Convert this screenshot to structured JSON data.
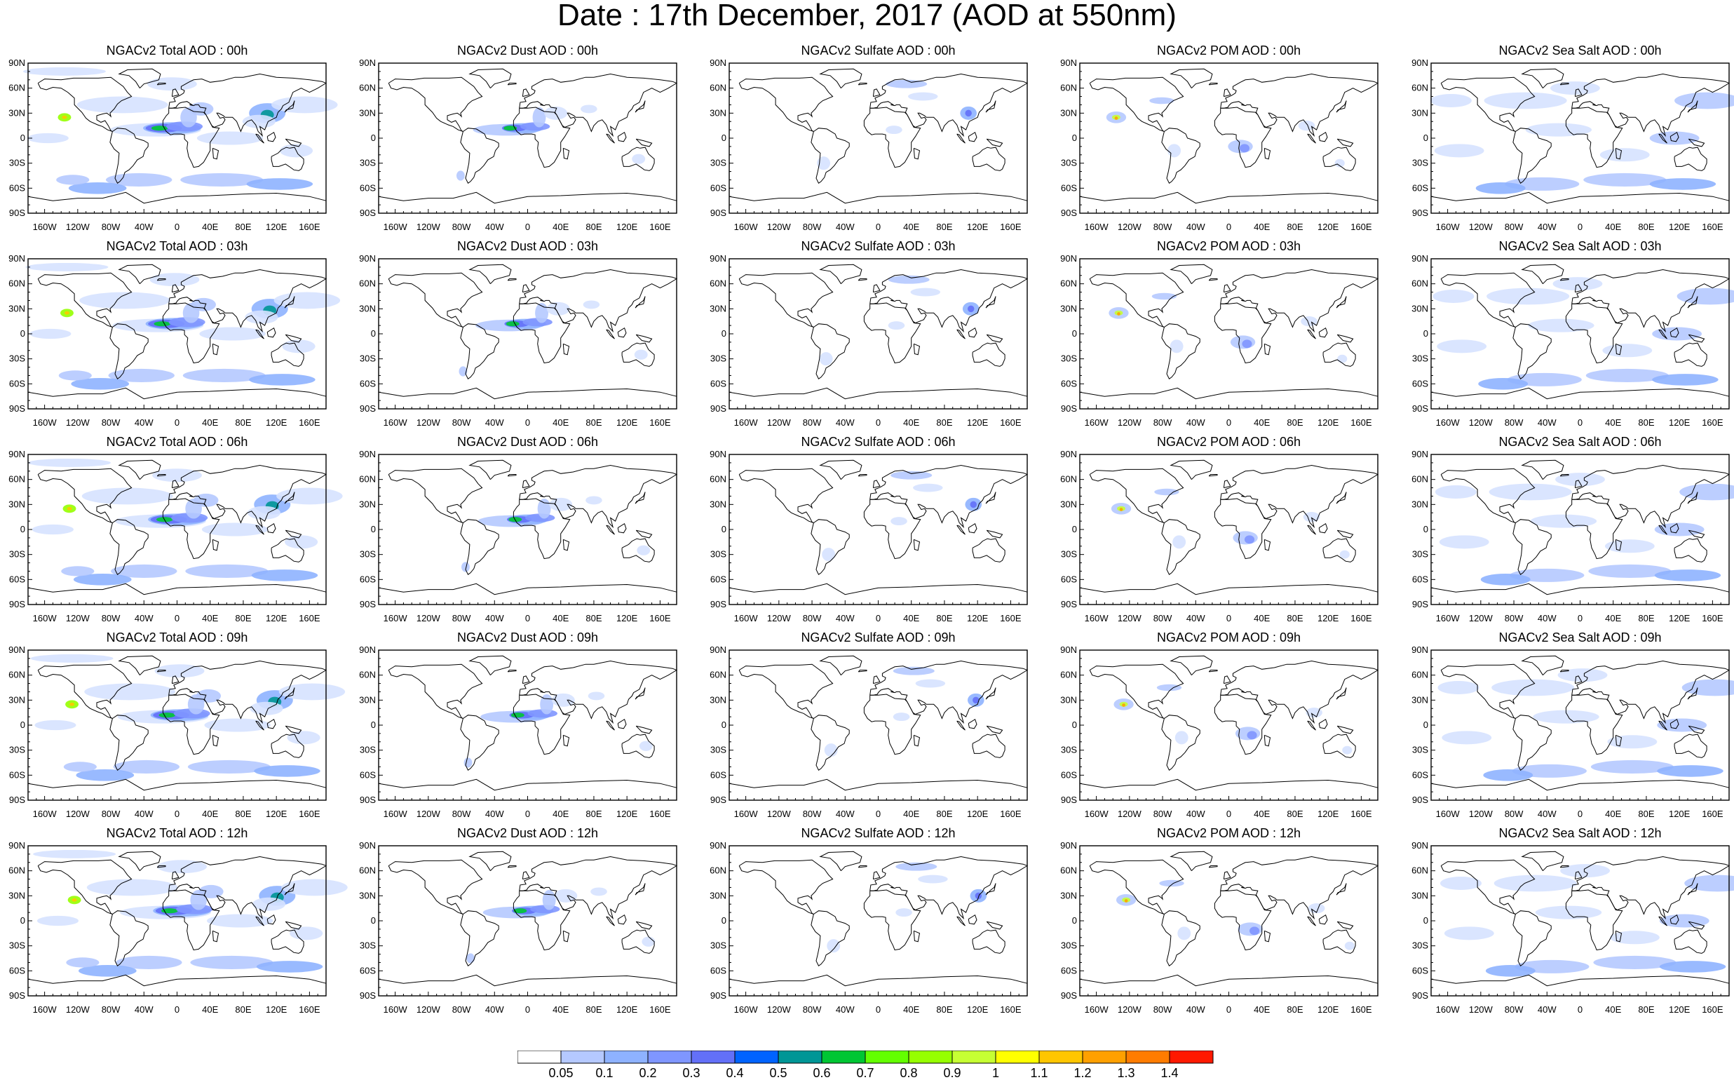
{
  "title": "Date : 17th December, 2017 (AOD at 550nm)",
  "grid": {
    "columns": [
      "NGACv2 Total AOD",
      "NGACv2 Dust AOD",
      "NGACv2 Sulfate AOD",
      "NGACv2 POM AOD",
      "NGACv2 Sea Salt AOD"
    ],
    "rows": [
      "00h",
      "03h",
      "06h",
      "09h",
      "12h"
    ]
  },
  "panel_titles": [
    [
      "NGACv2 Total AOD : 00h",
      "NGACv2 Dust AOD : 00h",
      "NGACv2 Sulfate AOD : 00h",
      "NGACv2 POM AOD : 00h",
      "NGACv2 Sea Salt AOD : 00h"
    ],
    [
      "NGACv2 Total AOD : 03h",
      "NGACv2 Dust AOD : 03h",
      "NGACv2 Sulfate AOD : 03h",
      "NGACv2 POM AOD : 03h",
      "NGACv2 Sea Salt AOD : 03h"
    ],
    [
      "NGACv2 Total AOD : 06h",
      "NGACv2 Dust AOD : 06h",
      "NGACv2 Sulfate AOD : 06h",
      "NGACv2 POM AOD : 06h",
      "NGACv2 Sea Salt AOD : 06h"
    ],
    [
      "NGACv2 Total AOD : 09h",
      "NGACv2 Dust AOD : 09h",
      "NGACv2 Sulfate AOD : 09h",
      "NGACv2 POM AOD : 09h",
      "NGACv2 Sea Salt  AOD : 09h"
    ],
    [
      "NGACv2 Total AOD : 12h",
      "NGACv2 Dust AOD : 12h",
      "NGACv2 Sulfate AOD : 12h",
      "NGACv2 POM  AOD : 12h",
      "NGACv2 Sea Salt  AOD : 12h"
    ]
  ],
  "y_ticks": [
    "90N",
    "60N",
    "30N",
    "0",
    "30S",
    "60S",
    "90S"
  ],
  "x_ticks": [
    "160W",
    "120W",
    "80W",
    "40W",
    "0",
    "40E",
    "80E",
    "120E",
    "160E"
  ],
  "colorbar": {
    "labels": [
      "0.05",
      "0.1",
      "0.2",
      "0.3",
      "0.4",
      "0.5",
      "0.6",
      "0.7",
      "0.8",
      "0.9",
      "1",
      "1.1",
      "1.2",
      "1.3",
      "1.4"
    ],
    "colors": [
      "#ffffff",
      "#d6e2ff",
      "#b5c9ff",
      "#8eb2ff",
      "#7f96ff",
      "#6370f8",
      "#0063ff",
      "#009696",
      "#00c633",
      "#63ff00",
      "#96ff00",
      "#c6ff33",
      "#ffff00",
      "#ffc600",
      "#ffa000",
      "#ff7c00",
      "#ff1900"
    ]
  }
}
